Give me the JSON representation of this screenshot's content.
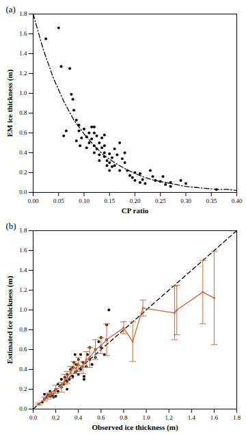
{
  "chart_data": [
    {
      "type": "scatter",
      "annotations": [
        "(a)"
      ],
      "xlabel": "CP ratio",
      "ylabel": "EM ice thickness (m)",
      "xlim": [
        0,
        0.4
      ],
      "xticks": [
        {
          "value": 0,
          "label": "0.00"
        },
        0.05,
        {
          "value": 0.1,
          "label": "0.10"
        },
        0.15,
        {
          "value": 0.2,
          "label": "0.20"
        },
        0.25,
        {
          "value": 0.3,
          "label": "0.30"
        },
        0.35,
        {
          "value": 0.4,
          "label": "0.40"
        }
      ],
      "ylim": [
        0,
        1.8
      ],
      "yticks": [
        {
          "value": 0,
          "label": "0.0"
        },
        0.2,
        0.4,
        0.6,
        0.8,
        {
          "value": 1,
          "label": "1.0"
        },
        1.2,
        1.4,
        1.6,
        1.8
      ],
      "grid": false,
      "series": [
        {
          "type": "scatter",
          "color": "#000000",
          "marker": "dot",
          "x": [
            0.025,
            0.05,
            0.055,
            0.072,
            0.075,
            0.078,
            0.065,
            0.06,
            0.08,
            0.085,
            0.085,
            0.09,
            0.095,
            0.092,
            0.1,
            0.105,
            0.11,
            0.11,
            0.115,
            0.115,
            0.12,
            0.12,
            0.12,
            0.125,
            0.125,
            0.13,
            0.13,
            0.13,
            0.135,
            0.135,
            0.14,
            0.14,
            0.14,
            0.14,
            0.145,
            0.145,
            0.15,
            0.15,
            0.15,
            0.155,
            0.16,
            0.16,
            0.165,
            0.17,
            0.17,
            0.175,
            0.18,
            0.18,
            0.185,
            0.19,
            0.195,
            0.2,
            0.2,
            0.21,
            0.21,
            0.215,
            0.22,
            0.23,
            0.235,
            0.24,
            0.25,
            0.255,
            0.26,
            0.27,
            0.27,
            0.29,
            0.3,
            0.36,
            0.105,
            0.09,
            0.155,
            0.12
          ],
          "y": [
            1.55,
            1.66,
            1.27,
            1.25,
            0.99,
            0.94,
            0.62,
            0.57,
            0.83,
            0.73,
            0.52,
            0.62,
            0.55,
            0.47,
            0.64,
            0.56,
            0.5,
            0.6,
            0.66,
            0.54,
            0.66,
            0.47,
            0.4,
            0.57,
            0.44,
            0.5,
            0.38,
            0.32,
            0.55,
            0.45,
            0.47,
            0.58,
            0.4,
            0.36,
            0.32,
            0.27,
            0.39,
            0.3,
            0.22,
            0.35,
            0.27,
            0.44,
            0.38,
            0.5,
            0.22,
            0.34,
            0.4,
            0.3,
            0.22,
            0.17,
            0.15,
            0.2,
            0.12,
            0.19,
            0.1,
            0.13,
            0.09,
            0.22,
            0.16,
            0.12,
            0.11,
            0.16,
            0.08,
            0.1,
            0.06,
            0.12,
            0.09,
            0.03,
            0.45,
            0.68,
            0.26,
            0.6
          ]
        },
        {
          "type": "line",
          "color": "#000000",
          "line_style": "dashdot",
          "x": [
            0,
            0.02,
            0.04,
            0.06,
            0.08,
            0.1,
            0.12,
            0.14,
            0.16,
            0.18,
            0.2,
            0.22,
            0.24,
            0.26,
            0.28,
            0.3,
            0.32,
            0.34,
            0.36,
            0.38,
            0.4
          ],
          "y": [
            1.8,
            1.44,
            1.15,
            0.92,
            0.73,
            0.59,
            0.47,
            0.37,
            0.3,
            0.24,
            0.19,
            0.15,
            0.12,
            0.1,
            0.08,
            0.06,
            0.05,
            0.04,
            0.03,
            0.03,
            0.02
          ]
        }
      ]
    },
    {
      "type": "scatter",
      "annotations": [
        "(b)"
      ],
      "xlabel": "Observed ice thickness (m)",
      "ylabel": "Estimated ice thickness (m)",
      "xlim": [
        0,
        1.8
      ],
      "xticks": [
        {
          "value": 0,
          "label": "0.0"
        },
        0.2,
        0.4,
        0.6,
        0.8,
        {
          "value": 1,
          "label": "1.0"
        },
        1.2,
        1.4,
        1.6,
        1.8
      ],
      "ylim": [
        0,
        1.8
      ],
      "yticks": [
        {
          "value": 0,
          "label": "0.0"
        },
        0.2,
        0.4,
        0.6,
        0.8,
        {
          "value": 1,
          "label": "1.0"
        },
        1.2,
        1.4,
        1.6,
        1.8
      ],
      "grid": false,
      "series": [
        {
          "type": "line",
          "color": "#000000",
          "line_style": "dashed",
          "x": [
            0,
            1.8
          ],
          "y": [
            0,
            1.8
          ]
        },
        {
          "type": "scatter",
          "color": "#000000",
          "marker": "dot",
          "x": [
            0.05,
            0.08,
            0.1,
            0.1,
            0.12,
            0.13,
            0.15,
            0.15,
            0.17,
            0.18,
            0.2,
            0.2,
            0.22,
            0.22,
            0.25,
            0.25,
            0.27,
            0.28,
            0.3,
            0.3,
            0.32,
            0.33,
            0.35,
            0.35,
            0.36,
            0.38,
            0.38,
            0.4,
            0.4,
            0.42,
            0.42,
            0.44,
            0.45,
            0.45,
            0.47,
            0.48,
            0.5,
            0.5,
            0.52,
            0.55,
            0.55,
            0.58,
            0.6,
            0.6,
            0.63,
            0.65,
            0.65,
            0.67,
            0.3,
            0.37
          ],
          "y": [
            0.05,
            0.07,
            0.1,
            0.15,
            0.12,
            0.14,
            0.13,
            0.18,
            0.14,
            0.12,
            0.2,
            0.13,
            0.25,
            0.18,
            0.22,
            0.3,
            0.25,
            0.32,
            0.28,
            0.35,
            0.3,
            0.4,
            0.42,
            0.33,
            0.47,
            0.38,
            0.45,
            0.35,
            0.5,
            0.55,
            0.4,
            0.47,
            0.33,
            0.3,
            0.43,
            0.55,
            0.5,
            0.62,
            0.45,
            0.6,
            0.52,
            0.68,
            0.62,
            0.72,
            0.55,
            0.85,
            0.7,
            1.0,
            0.2,
            0.55
          ]
        },
        {
          "type": "line",
          "color": "#cc6633",
          "marker": "dot",
          "x": [
            0.05,
            0.1,
            0.13,
            0.15,
            0.18,
            0.2,
            0.25,
            0.28,
            0.3,
            0.33,
            0.36,
            0.38,
            0.4,
            0.44,
            0.47,
            0.5,
            0.55,
            0.6,
            0.65,
            0.8,
            0.88,
            0.97,
            1.25,
            1.27,
            1.5,
            1.6
          ],
          "y": [
            0.05,
            0.1,
            0.13,
            0.14,
            0.15,
            0.2,
            0.22,
            0.3,
            0.32,
            0.37,
            0.42,
            0.41,
            0.45,
            0.42,
            0.5,
            0.52,
            0.6,
            0.64,
            0.7,
            0.82,
            0.68,
            1.02,
            0.97,
            1.0,
            1.18,
            1.12
          ],
          "error": [
            0.01,
            0.02,
            0.03,
            0.02,
            0.03,
            0.04,
            0.05,
            0.05,
            0.06,
            0.06,
            0.06,
            0.05,
            0.07,
            0.06,
            0.08,
            0.1,
            0.1,
            0.08,
            0.16,
            0.06,
            0.2,
            0.08,
            0.27,
            0.25,
            0.32,
            0.47
          ]
        }
      ]
    }
  ]
}
